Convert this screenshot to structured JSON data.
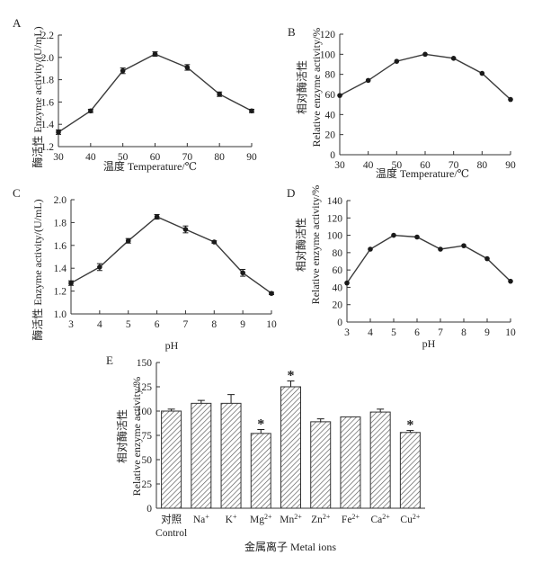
{
  "chart_data": [
    {
      "id": "A",
      "type": "line",
      "panel_label": "A",
      "xlabel": "温度  Temperature/℃",
      "ylabel": "酶活性  Enzyme activity/(U/mL)",
      "x": [
        30,
        40,
        50,
        60,
        70,
        80,
        90
      ],
      "values": [
        1.33,
        1.52,
        1.88,
        2.03,
        1.91,
        1.67,
        1.52
      ],
      "errors": [
        0.02,
        0.015,
        0.025,
        0.02,
        0.025,
        0.02,
        0.015
      ],
      "xlim": [
        30,
        90
      ],
      "ylim": [
        1.2,
        2.2
      ],
      "xticks": [
        30,
        40,
        50,
        60,
        70,
        80,
        90
      ],
      "yticks": [
        1.2,
        1.4,
        1.6,
        1.8,
        2.0,
        2.2
      ],
      "ytick_labels": [
        "1.2",
        "1.4",
        "1.6",
        "1.8",
        "2.0",
        "2.2"
      ]
    },
    {
      "id": "B",
      "type": "line",
      "panel_label": "B",
      "xlabel": "温度  Temperature/℃",
      "ylabel_cn": "相对酶活性",
      "ylabel_en": "Relative enzyme activity/%",
      "x": [
        30,
        40,
        50,
        60,
        70,
        80,
        90
      ],
      "values": [
        59,
        74,
        93,
        100,
        96,
        81,
        55
      ],
      "xlim": [
        30,
        90
      ],
      "ylim": [
        0,
        120
      ],
      "xticks": [
        30,
        40,
        50,
        60,
        70,
        80,
        90
      ],
      "yticks": [
        0,
        20,
        40,
        60,
        80,
        100,
        120
      ],
      "ytick_labels": [
        "0",
        "20",
        "40",
        "60",
        "80",
        "100",
        "120"
      ]
    },
    {
      "id": "C",
      "type": "line",
      "panel_label": "C",
      "xlabel": "pH",
      "ylabel": "酶活性  Enzyme activity/(U/mL)",
      "x": [
        3,
        4,
        5,
        6,
        7,
        8,
        9,
        10
      ],
      "values": [
        1.27,
        1.41,
        1.64,
        1.85,
        1.74,
        1.63,
        1.36,
        1.18
      ],
      "errors": [
        0.02,
        0.03,
        0.02,
        0.02,
        0.03,
        0.01,
        0.03,
        0.01
      ],
      "xlim": [
        3,
        10
      ],
      "ylim": [
        1.0,
        2.0
      ],
      "xticks": [
        3,
        4,
        5,
        6,
        7,
        8,
        9,
        10
      ],
      "yticks": [
        1.0,
        1.2,
        1.4,
        1.6,
        1.8,
        2.0
      ],
      "ytick_labels": [
        "1.0",
        "1.2",
        "1.4",
        "1.6",
        "1.8",
        "2.0"
      ]
    },
    {
      "id": "D",
      "type": "line",
      "panel_label": "D",
      "xlabel": "pH",
      "ylabel_cn": "相对酶活性",
      "ylabel_en": "Relative enzyme activity/%",
      "x": [
        3,
        4,
        5,
        6,
        7,
        8,
        9,
        10
      ],
      "values": [
        45,
        84,
        100,
        98,
        84,
        88,
        73,
        47
      ],
      "xlim": [
        3,
        10
      ],
      "ylim": [
        0,
        140
      ],
      "xticks": [
        3,
        4,
        5,
        6,
        7,
        8,
        9,
        10
      ],
      "yticks": [
        0,
        20,
        40,
        60,
        80,
        100,
        120,
        140
      ],
      "ytick_labels": [
        "0",
        "20",
        "40",
        "60",
        "80",
        "100",
        "120",
        "140"
      ]
    },
    {
      "id": "E",
      "type": "bar",
      "panel_label": "E",
      "xlabel": "金属离子  Metal ions",
      "ylabel_cn": "相对酶活性",
      "ylabel_en": "Relative enzyme activity/%",
      "categories": [
        {
          "base": "对照",
          "sup": "",
          "second_line": "Control"
        },
        {
          "base": "Na",
          "sup": "+",
          "second_line": ""
        },
        {
          "base": "K",
          "sup": "+",
          "second_line": ""
        },
        {
          "base": "Mg",
          "sup": "2+",
          "second_line": ""
        },
        {
          "base": "Mn",
          "sup": "2+",
          "second_line": ""
        },
        {
          "base": "Zn",
          "sup": "2+",
          "second_line": ""
        },
        {
          "base": "Fe",
          "sup": "2+",
          "second_line": ""
        },
        {
          "base": "Ca",
          "sup": "2+",
          "second_line": ""
        },
        {
          "base": "Cu",
          "sup": "2+",
          "second_line": ""
        }
      ],
      "values": [
        100,
        108,
        108,
        77,
        125,
        89,
        94,
        99,
        78
      ],
      "errors": [
        2,
        3,
        9,
        4,
        6,
        3,
        0,
        3,
        2
      ],
      "significant": [
        false,
        false,
        false,
        true,
        true,
        false,
        false,
        false,
        true
      ],
      "significance_mark": "*",
      "ylim": [
        0,
        150
      ],
      "yticks": [
        0,
        25,
        50,
        75,
        100,
        125,
        150
      ],
      "ytick_labels": [
        "0",
        "25",
        "50",
        "75",
        "100",
        "125",
        "150"
      ]
    }
  ]
}
